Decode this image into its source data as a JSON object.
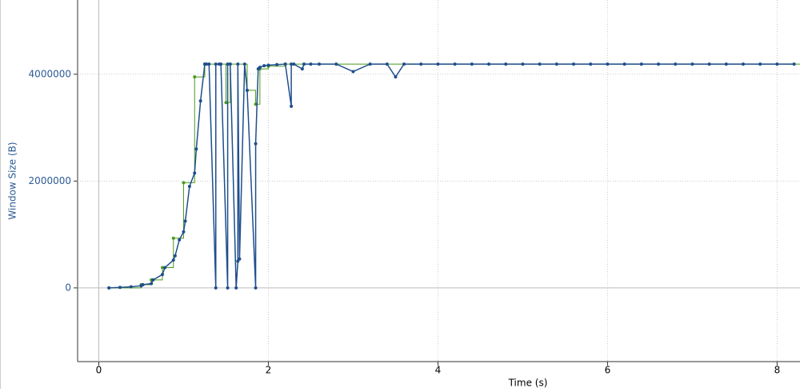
{
  "chart_data": {
    "type": "line",
    "x_label": "Time (s)",
    "y_label": "Window Size (B)",
    "xlim": [
      -0.25,
      8.27
    ],
    "ylim": [
      -1380000,
      5390000
    ],
    "xticks": [
      0,
      2,
      4,
      6,
      8
    ],
    "yticks": [
      0,
      2000000,
      4000000
    ],
    "grid": true,
    "series": [
      {
        "color": "#4a9a1e",
        "step": true,
        "markers": true,
        "x": [
          0.12,
          0.5,
          0.62,
          0.75,
          0.88,
          1.0,
          1.13,
          1.25,
          1.5,
          1.55,
          1.75,
          1.85,
          1.9,
          2.0,
          2.2
        ],
        "values": [
          0,
          60000,
          150000,
          380000,
          930000,
          1970000,
          3950000,
          4190000,
          3470000,
          4190000,
          3700000,
          3440000,
          4100000,
          4150000,
          4190000
        ]
      },
      {
        "color": "#1f4e8c",
        "step": false,
        "markers": true,
        "x": [
          0.12,
          0.25,
          0.38,
          0.5,
          0.52,
          0.62,
          0.64,
          0.75,
          0.78,
          0.88,
          0.9,
          0.95,
          1.0,
          1.02,
          1.07,
          1.13,
          1.15,
          1.2,
          1.25,
          1.27,
          1.3,
          1.38,
          1.38,
          1.42,
          1.44,
          1.52,
          1.52,
          1.55,
          1.62,
          1.64,
          1.64,
          1.66,
          1.72,
          1.75,
          1.85,
          1.85,
          1.88,
          1.9,
          1.95,
          2.0,
          2.1,
          2.2,
          2.27,
          2.27,
          2.3,
          2.4,
          2.42,
          2.5,
          2.6,
          2.8,
          3.0,
          3.2,
          3.4,
          3.5,
          3.6,
          3.8,
          4.0,
          4.2,
          4.4,
          4.6,
          4.8,
          5.0,
          5.2,
          5.4,
          5.6,
          5.8,
          6.0,
          6.2,
          6.4,
          6.6,
          6.8,
          7.0,
          7.2,
          7.4,
          7.6,
          7.8,
          8.0,
          8.2
        ],
        "values": [
          0,
          10000,
          20000,
          40000,
          60000,
          80000,
          150000,
          250000,
          380000,
          520000,
          600000,
          900000,
          1050000,
          1250000,
          1900000,
          2150000,
          2600000,
          3500000,
          4190000,
          4190000,
          4190000,
          0,
          4190000,
          4190000,
          4190000,
          0,
          4190000,
          4190000,
          0,
          500000,
          4190000,
          540000,
          4190000,
          3700000,
          0,
          2700000,
          4100000,
          4130000,
          4160000,
          4170000,
          4180000,
          4190000,
          3400000,
          4190000,
          4190000,
          4100000,
          4190000,
          4190000,
          4190000,
          4190000,
          4050000,
          4190000,
          4190000,
          3950000,
          4190000,
          4190000,
          4190000,
          4190000,
          4190000,
          4190000,
          4190000,
          4190000,
          4190000,
          4190000,
          4190000,
          4190000,
          4190000,
          4190000,
          4190000,
          4190000,
          4190000,
          4190000,
          4190000,
          4190000,
          4190000,
          4190000,
          4190000,
          4190000
        ]
      }
    ]
  }
}
